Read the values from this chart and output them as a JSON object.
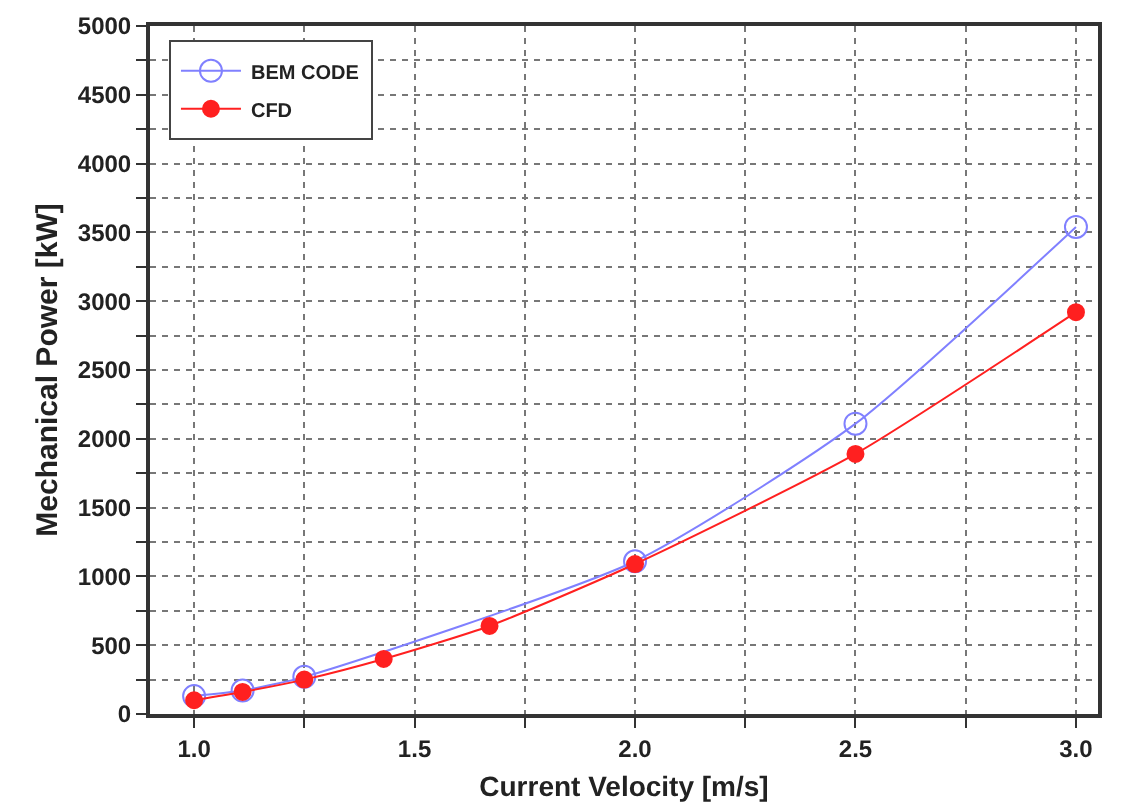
{
  "chart_data": {
    "type": "line",
    "xlabel": "Current Velocity [m/s]",
    "ylabel": "Mechanical Power [kW]",
    "x": [
      1.0,
      1.11,
      1.25,
      1.43,
      1.67,
      2.0,
      2.5,
      3.0
    ],
    "series": [
      {
        "name": "BEM CODE",
        "color": "#8080ff",
        "values": [
          130,
          170,
          270,
          null,
          null,
          1110,
          2110,
          3540
        ]
      },
      {
        "name": "CFD",
        "color": "#ff2020",
        "values": [
          100,
          160,
          250,
          400,
          640,
          1090,
          1890,
          2920
        ]
      }
    ],
    "xlim": [
      0.9,
      3.05
    ],
    "xticks": [
      {
        "value": 1.0,
        "label": "1.0"
      },
      {
        "value": 1.25,
        "label": null
      },
      {
        "value": 1.5,
        "label": "1.5"
      },
      {
        "value": 1.75,
        "label": null
      },
      {
        "value": 2.0,
        "label": "2.0"
      },
      {
        "value": 2.25,
        "label": null
      },
      {
        "value": 2.5,
        "label": "2.5"
      },
      {
        "value": 2.75,
        "label": null
      },
      {
        "value": 3.0,
        "label": "3.0"
      }
    ],
    "ylim": [
      0,
      5000
    ],
    "yticks": [
      0,
      {
        "value": 250,
        "label": null
      },
      500,
      {
        "value": 750,
        "label": null
      },
      1000,
      {
        "value": 1250,
        "label": null
      },
      1500,
      {
        "value": 1750,
        "label": null
      },
      2000,
      {
        "value": 2250,
        "label": null
      },
      2500,
      {
        "value": 2750,
        "label": null
      },
      3000,
      {
        "value": 3250,
        "label": null
      },
      3500,
      {
        "value": 3750,
        "label": null
      },
      4000,
      {
        "value": 4250,
        "label": null
      },
      4500,
      {
        "value": 4750,
        "label": null
      },
      5000
    ],
    "grid": true,
    "legend": "top left",
    "marker": "circle",
    "line_style": "solid"
  }
}
